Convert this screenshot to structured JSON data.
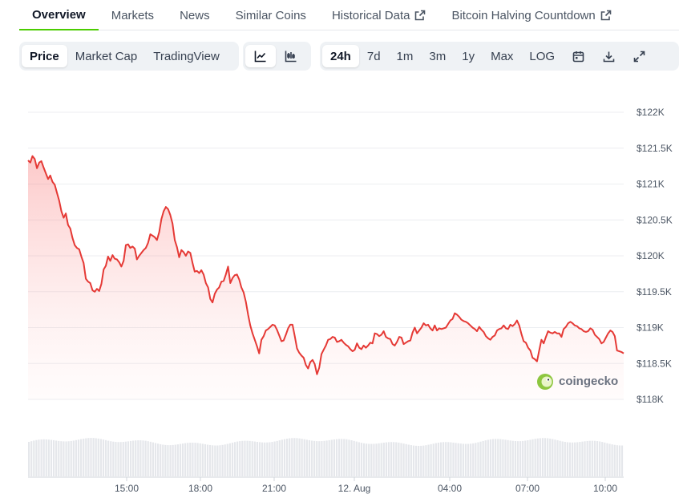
{
  "tabs": [
    {
      "label": "Overview",
      "active": true,
      "external": false
    },
    {
      "label": "Markets",
      "active": false,
      "external": false
    },
    {
      "label": "News",
      "active": false,
      "external": false
    },
    {
      "label": "Similar Coins",
      "active": false,
      "external": false
    },
    {
      "label": "Historical Data",
      "active": false,
      "external": true
    },
    {
      "label": "Bitcoin Halving Countdown",
      "active": false,
      "external": true
    }
  ],
  "toolbar": {
    "view_options": [
      "Price",
      "Market Cap",
      "TradingView"
    ],
    "ranges": [
      "24h",
      "7d",
      "1m",
      "3m",
      "1y",
      "Max",
      "LOG"
    ],
    "icons": [
      "line-chart-icon",
      "candlestick-icon",
      "calendar-icon",
      "download-icon",
      "fullscreen-icon"
    ]
  },
  "watermark": "coingecko",
  "colors": {
    "line": "#e53935",
    "fill": "#fde0df",
    "active_tab": "#4bcc00",
    "volume": "#e5e7eb"
  },
  "chart_data": {
    "type": "area",
    "series": [
      {
        "values": [
          121330,
          121300,
          121390,
          121350,
          121220,
          121300,
          121320,
          121230,
          121150,
          121070,
          121120,
          121030,
          120990,
          120880,
          120770,
          120620,
          120530,
          120590,
          120430,
          120380,
          120250,
          120150,
          120110,
          120090,
          119990,
          119900,
          119680,
          119640,
          119620,
          119520,
          119500,
          119540,
          119510,
          119610,
          119810,
          119860,
          119990,
          119930,
          120010,
          119960,
          119950,
          119910,
          119850,
          119930,
          120150,
          120160,
          120110,
          120130,
          120100,
          119950,
          120000,
          120040,
          120080,
          120110,
          120180,
          120300,
          120280,
          120260,
          120220,
          120330,
          120510,
          120620,
          120680,
          120650,
          120570,
          120450,
          120220,
          120120,
          119980,
          120080,
          120050,
          120000,
          120060,
          120040,
          119900,
          119780,
          119790,
          119760,
          119800,
          119740,
          119620,
          119560,
          119400,
          119350,
          119470,
          119530,
          119560,
          119640,
          119650,
          119740,
          119850,
          119620,
          119690,
          119730,
          119740,
          119670,
          119560,
          119490,
          119360,
          119180,
          119030,
          118920,
          118830,
          118740,
          118640,
          118830,
          118880,
          118960,
          118980,
          119010,
          119040,
          119030,
          118970,
          118890,
          118810,
          118820,
          118900,
          118990,
          119040,
          119040,
          118880,
          118710,
          118650,
          118610,
          118580,
          118480,
          118430,
          118520,
          118550,
          118490,
          118350,
          118440,
          118630,
          118690,
          118750,
          118830,
          118840,
          118870,
          118860,
          118800,
          118810,
          118830,
          118790,
          118760,
          118740,
          118700,
          118670,
          118690,
          118780,
          118720,
          118700,
          118750,
          118720,
          118750,
          118790,
          118780,
          118920,
          118910,
          118880,
          118900,
          118950,
          118870,
          118850,
          118840,
          118770,
          118750,
          118800,
          118870,
          118860,
          118770,
          118790,
          118810,
          118820,
          118930,
          119000,
          118920,
          118960,
          119000,
          119060,
          119030,
          119040,
          118990,
          118960,
          119030,
          118960,
          118990,
          118980,
          118990,
          119000,
          119050,
          119100,
          119120,
          119200,
          119180,
          119150,
          119110,
          119090,
          119080,
          119060,
          119030,
          119000,
          118980,
          118950,
          119010,
          118970,
          118940,
          118880,
          118850,
          118830,
          118870,
          118890,
          118960,
          118980,
          118990,
          119030,
          118990,
          118980,
          119040,
          119020,
          119050,
          119100,
          119030,
          118910,
          118810,
          118790,
          118720,
          118680,
          118580,
          118560,
          118530,
          118680,
          118830,
          118780,
          118870,
          118950,
          118930,
          118920,
          118940,
          118920,
          118920,
          118870,
          118980,
          119010,
          119060,
          119080,
          119060,
          119030,
          119020,
          118990,
          118980,
          118950,
          118940,
          118950,
          118990,
          118970,
          118900,
          118870,
          118840,
          118780,
          118800,
          118860,
          118920,
          118960,
          118940,
          118880,
          118680,
          118670,
          118660,
          118640
        ]
      }
    ],
    "x_ticks": [
      "15:00",
      "18:00",
      "21:00",
      "12. Aug",
      "04:00",
      "07:00",
      "10:00"
    ],
    "y_ticks": [
      "$122K",
      "$121.5K",
      "$121K",
      "$120.5K",
      "$120K",
      "$119.5K",
      "$119K",
      "$118.5K",
      "$118K"
    ],
    "ylim": [
      118000,
      122000
    ],
    "grid": true,
    "volume_bars": 240
  }
}
